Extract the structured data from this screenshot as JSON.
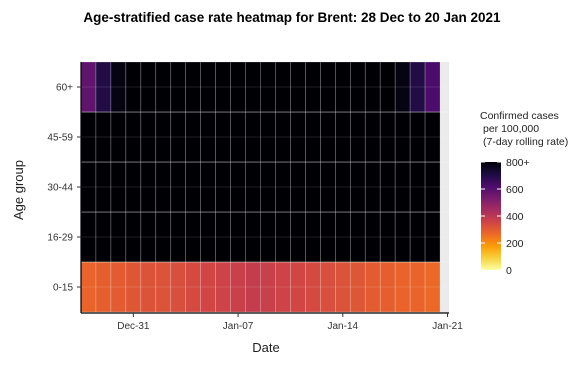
{
  "chart_data": {
    "type": "heatmap",
    "title": "Age-stratified case rate heatmap for Brent: 28 Dec to 20 Jan 2021",
    "xlabel": "Date",
    "ylabel": "Age group",
    "x_start": "2020-12-28",
    "x_end": "2021-01-20",
    "x_ticks": [
      {
        "date": "2020-12-31",
        "label": "Dec-31"
      },
      {
        "date": "2021-01-07",
        "label": "Jan-07"
      },
      {
        "date": "2021-01-14",
        "label": "Jan-14"
      },
      {
        "date": "2021-01-21",
        "label": "Jan-21"
      }
    ],
    "y_categories": [
      "0-15",
      "16-29",
      "30-44",
      "45-59",
      "60+"
    ],
    "x_dates": [
      "2020-12-28",
      "2020-12-29",
      "2020-12-30",
      "2020-12-31",
      "2021-01-01",
      "2021-01-02",
      "2021-01-03",
      "2021-01-04",
      "2021-01-05",
      "2021-01-06",
      "2021-01-07",
      "2021-01-08",
      "2021-01-09",
      "2021-01-10",
      "2021-01-11",
      "2021-01-12",
      "2021-01-13",
      "2021-01-14",
      "2021-01-15",
      "2021-01-16",
      "2021-01-17",
      "2021-01-18",
      "2021-01-19",
      "2021-01-20"
    ],
    "series": [
      {
        "name": "0-15",
        "values": [
          280,
          290,
          300,
          310,
          320,
          320,
          330,
          340,
          350,
          360,
          370,
          380,
          370,
          360,
          350,
          340,
          330,
          320,
          310,
          300,
          290,
          280,
          280,
          270
        ]
      },
      {
        "name": "16-29",
        "values": [
          850,
          850,
          850,
          850,
          850,
          850,
          850,
          850,
          850,
          850,
          850,
          850,
          850,
          850,
          850,
          850,
          850,
          850,
          850,
          850,
          850,
          850,
          850,
          850
        ]
      },
      {
        "name": "30-44",
        "values": [
          850,
          850,
          850,
          850,
          850,
          850,
          850,
          850,
          850,
          850,
          850,
          850,
          850,
          850,
          850,
          850,
          850,
          850,
          850,
          850,
          850,
          850,
          850,
          850
        ]
      },
      {
        "name": "45-59",
        "values": [
          850,
          850,
          850,
          850,
          850,
          850,
          850,
          850,
          850,
          850,
          850,
          850,
          850,
          850,
          850,
          850,
          850,
          850,
          850,
          850,
          850,
          850,
          850,
          850
        ]
      },
      {
        "name": "60+",
        "values": [
          580,
          700,
          780,
          830,
          850,
          850,
          850,
          850,
          850,
          850,
          850,
          850,
          850,
          850,
          850,
          850,
          850,
          850,
          850,
          850,
          850,
          780,
          700,
          620
        ]
      }
    ],
    "color_scale": {
      "title": [
        "Confirmed cases",
        "per 100,000",
        "(7-day rolling rate)"
      ],
      "min": 0,
      "max": 800,
      "ticks": [
        {
          "value": 0,
          "label": "0"
        },
        {
          "value": 200,
          "label": "200"
        },
        {
          "value": 400,
          "label": "400"
        },
        {
          "value": 600,
          "label": "600"
        },
        {
          "value": 800,
          "label": "800+"
        }
      ],
      "stops": [
        "#fcffa4",
        "#f7d13d",
        "#fb9b06",
        "#ed6925",
        "#cf4446",
        "#a52c60",
        "#781c6d",
        "#4a0c6b",
        "#1b0c41",
        "#000004"
      ]
    },
    "grid": true,
    "legend_position": "right"
  }
}
